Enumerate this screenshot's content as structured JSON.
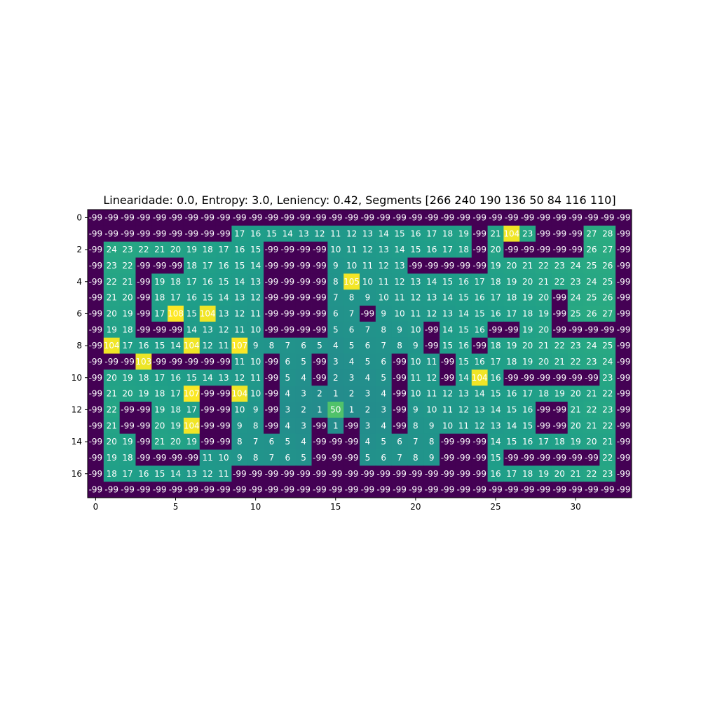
{
  "chart_data": {
    "type": "heatmap",
    "title": "Linearidade: 0.0, Entropy: 3.0, Leniency: 0.42, Segments [266 240 190 136  50  84 116 110]",
    "xlabel": "",
    "ylabel": "",
    "colormap": "viridis",
    "color_range": [
      -99,
      108
    ],
    "x_ticks": [
      0,
      5,
      10,
      15,
      20,
      25,
      30
    ],
    "y_ticks": [
      0,
      2,
      4,
      6,
      8,
      10,
      12,
      14,
      16
    ],
    "rows": 18,
    "cols": 34,
    "grid": false,
    "values": [
      [
        -99,
        -99,
        -99,
        -99,
        -99,
        -99,
        -99,
        -99,
        -99,
        -99,
        -99,
        -99,
        -99,
        -99,
        -99,
        -99,
        -99,
        -99,
        -99,
        -99,
        -99,
        -99,
        -99,
        -99,
        -99,
        -99,
        -99,
        -99,
        -99,
        -99,
        -99,
        -99,
        -99,
        -99
      ],
      [
        -99,
        -99,
        -99,
        -99,
        -99,
        -99,
        -99,
        -99,
        -99,
        17,
        16,
        15,
        14,
        13,
        12,
        11,
        12,
        13,
        14,
        15,
        16,
        17,
        18,
        19,
        -99,
        21,
        104,
        23,
        -99,
        -99,
        -99,
        27,
        28,
        -99
      ],
      [
        -99,
        24,
        23,
        22,
        21,
        20,
        19,
        18,
        17,
        16,
        15,
        -99,
        -99,
        -99,
        -99,
        10,
        11,
        12,
        13,
        14,
        15,
        16,
        17,
        18,
        -99,
        20,
        -99,
        -99,
        -99,
        -99,
        -99,
        26,
        27,
        -99
      ],
      [
        -99,
        23,
        22,
        -99,
        -99,
        -99,
        18,
        17,
        16,
        15,
        14,
        -99,
        -99,
        -99,
        -99,
        9,
        10,
        11,
        12,
        13,
        -99,
        -99,
        -99,
        -99,
        -99,
        19,
        20,
        21,
        22,
        23,
        24,
        25,
        26,
        -99
      ],
      [
        -99,
        22,
        21,
        -99,
        19,
        18,
        17,
        16,
        15,
        14,
        13,
        -99,
        -99,
        -99,
        -99,
        8,
        105,
        10,
        11,
        12,
        13,
        14,
        15,
        16,
        17,
        18,
        19,
        20,
        21,
        22,
        23,
        24,
        25,
        -99
      ],
      [
        -99,
        21,
        20,
        -99,
        18,
        17,
        16,
        15,
        14,
        13,
        12,
        -99,
        -99,
        -99,
        -99,
        7,
        8,
        9,
        10,
        11,
        12,
        13,
        14,
        15,
        16,
        17,
        18,
        19,
        20,
        -99,
        24,
        25,
        26,
        -99
      ],
      [
        -99,
        20,
        19,
        -99,
        17,
        108,
        15,
        104,
        13,
        12,
        11,
        -99,
        -99,
        -99,
        -99,
        6,
        7,
        -99,
        9,
        10,
        11,
        12,
        13,
        14,
        15,
        16,
        17,
        18,
        19,
        -99,
        25,
        26,
        27,
        -99
      ],
      [
        -99,
        19,
        18,
        -99,
        -99,
        -99,
        14,
        13,
        12,
        11,
        10,
        -99,
        -99,
        -99,
        -99,
        5,
        6,
        7,
        8,
        9,
        10,
        -99,
        14,
        15,
        16,
        -99,
        -99,
        19,
        20,
        -99,
        -99,
        -99,
        -99,
        -99
      ],
      [
        -99,
        104,
        17,
        16,
        15,
        14,
        104,
        12,
        11,
        107,
        9,
        8,
        7,
        6,
        5,
        4,
        5,
        6,
        7,
        8,
        9,
        -99,
        15,
        16,
        -99,
        18,
        19,
        20,
        21,
        22,
        23,
        24,
        25,
        -99
      ],
      [
        -99,
        -99,
        -99,
        103,
        -99,
        -99,
        -99,
        -99,
        -99,
        11,
        10,
        -99,
        6,
        5,
        -99,
        3,
        4,
        5,
        6,
        -99,
        10,
        11,
        -99,
        15,
        16,
        17,
        18,
        19,
        20,
        21,
        22,
        23,
        24,
        -99
      ],
      [
        -99,
        20,
        19,
        18,
        17,
        16,
        15,
        14,
        13,
        12,
        11,
        -99,
        5,
        4,
        -99,
        2,
        3,
        4,
        5,
        -99,
        11,
        12,
        -99,
        14,
        104,
        16,
        -99,
        -99,
        -99,
        -99,
        -99,
        -99,
        23,
        -99
      ],
      [
        -99,
        21,
        20,
        19,
        18,
        17,
        107,
        -99,
        -99,
        104,
        10,
        -99,
        4,
        3,
        2,
        1,
        2,
        3,
        4,
        -99,
        10,
        11,
        12,
        13,
        14,
        15,
        16,
        17,
        18,
        19,
        20,
        21,
        22,
        -99
      ],
      [
        -99,
        22,
        -99,
        -99,
        19,
        18,
        17,
        -99,
        -99,
        10,
        9,
        -99,
        3,
        2,
        1,
        50,
        1,
        2,
        3,
        -99,
        9,
        10,
        11,
        12,
        13,
        14,
        15,
        16,
        -99,
        -99,
        21,
        22,
        23,
        -99
      ],
      [
        -99,
        21,
        -99,
        -99,
        20,
        19,
        104,
        -99,
        -99,
        9,
        8,
        -99,
        4,
        3,
        -99,
        1,
        -99,
        3,
        4,
        -99,
        8,
        9,
        10,
        11,
        12,
        13,
        14,
        15,
        -99,
        -99,
        20,
        21,
        22,
        -99
      ],
      [
        -99,
        20,
        19,
        -99,
        21,
        20,
        19,
        -99,
        -99,
        8,
        7,
        6,
        5,
        4,
        -99,
        -99,
        -99,
        4,
        5,
        6,
        7,
        8,
        -99,
        -99,
        -99,
        14,
        15,
        16,
        17,
        18,
        19,
        20,
        21,
        -99
      ],
      [
        -99,
        19,
        18,
        -99,
        -99,
        -99,
        -99,
        11,
        10,
        9,
        8,
        7,
        6,
        5,
        -99,
        -99,
        -99,
        5,
        6,
        7,
        8,
        9,
        -99,
        -99,
        -99,
        15,
        -99,
        -99,
        -99,
        -99,
        -99,
        -99,
        22,
        -99
      ],
      [
        -99,
        18,
        17,
        16,
        15,
        14,
        13,
        12,
        11,
        -99,
        -99,
        -99,
        -99,
        -99,
        -99,
        -99,
        -99,
        -99,
        -99,
        -99,
        -99,
        -99,
        -99,
        -99,
        -99,
        16,
        17,
        18,
        19,
        20,
        21,
        22,
        23,
        -99
      ],
      [
        -99,
        -99,
        -99,
        -99,
        -99,
        -99,
        -99,
        -99,
        -99,
        -99,
        -99,
        -99,
        -99,
        -99,
        -99,
        -99,
        -99,
        -99,
        -99,
        -99,
        -99,
        -99,
        -99,
        -99,
        -99,
        -99,
        -99,
        -99,
        -99,
        -99,
        -99,
        -99,
        -99,
        -99
      ]
    ]
  }
}
